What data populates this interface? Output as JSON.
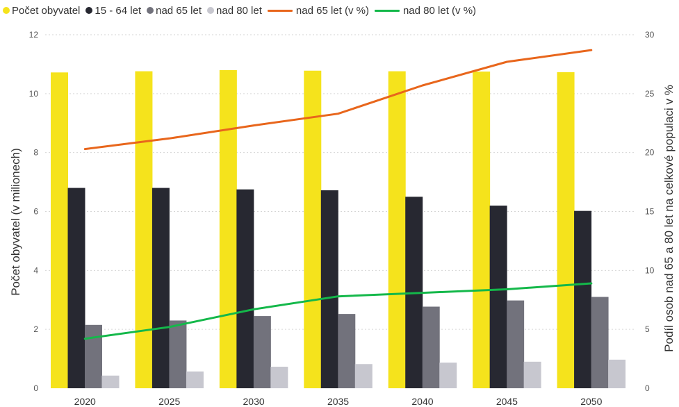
{
  "chart_data": {
    "type": "bar",
    "categories": [
      "2020",
      "2025",
      "2030",
      "2035",
      "2040",
      "2045",
      "2050"
    ],
    "series": [
      {
        "name": "Počet obyvatel",
        "kind": "bar",
        "axis": "left",
        "color": "#f5e31c",
        "values": [
          10.72,
          10.76,
          10.8,
          10.78,
          10.76,
          10.75,
          10.73
        ]
      },
      {
        "name": "15 - 64 let",
        "kind": "bar",
        "axis": "left",
        "color": "#272831",
        "values": [
          6.8,
          6.8,
          6.75,
          6.72,
          6.5,
          6.2,
          6.02
        ]
      },
      {
        "name": "nad 65 let",
        "kind": "bar",
        "axis": "left",
        "color": "#72727c",
        "values": [
          2.15,
          2.3,
          2.45,
          2.52,
          2.77,
          2.98,
          3.1
        ]
      },
      {
        "name": "nad 80 let",
        "kind": "bar",
        "axis": "left",
        "color": "#c7c7cf",
        "values": [
          0.43,
          0.57,
          0.73,
          0.82,
          0.87,
          0.9,
          0.97
        ]
      },
      {
        "name": "nad 65 let (v %)",
        "kind": "line",
        "axis": "right",
        "color": "#e8661c",
        "values": [
          20.3,
          21.2,
          22.3,
          23.3,
          25.7,
          27.7,
          28.7
        ]
      },
      {
        "name": "nad 80 let (v %)",
        "kind": "line",
        "axis": "right",
        "color": "#14b84a",
        "values": [
          4.2,
          5.2,
          6.7,
          7.8,
          8.1,
          8.4,
          8.9
        ]
      }
    ],
    "ylabel": "Počet obyvatel (v milionech)",
    "y2label": "Podíl osob nad 65 a 80 let na celkové populaci v %",
    "ylim": [
      0,
      12
    ],
    "y2lim": [
      0,
      30
    ],
    "yticks": [
      0,
      2,
      4,
      6,
      8,
      10,
      12
    ],
    "y2ticks": [
      0,
      5,
      10,
      15,
      20,
      25,
      30
    ],
    "grid": true,
    "legend": "top-left"
  }
}
